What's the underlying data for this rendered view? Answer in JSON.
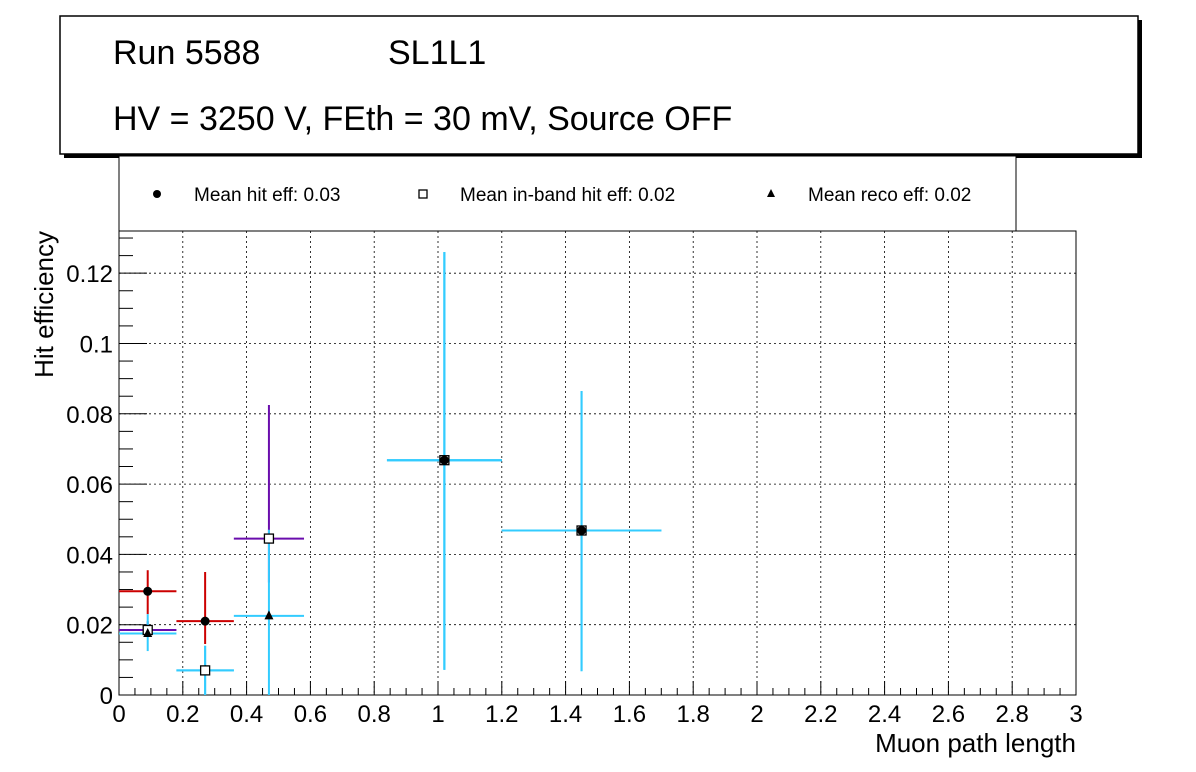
{
  "chart_data": {
    "type": "scatter",
    "title_line1_run": "Run 5588",
    "title_line1_layer": "SL1L1",
    "title_line2": "HV = 3250 V, FEth = 30 mV, Source OFF",
    "xlabel": "Muon path length",
    "ylabel": "Hit efficiency",
    "xlim": [
      0,
      3
    ],
    "ylim": [
      0,
      0.132
    ],
    "grid": true,
    "x_ticks": [
      {
        "v": 0,
        "label": "0"
      },
      {
        "v": 0.2,
        "label": "0.2"
      },
      {
        "v": 0.4,
        "label": "0.4"
      },
      {
        "v": 0.6,
        "label": "0.6"
      },
      {
        "v": 0.8,
        "label": "0.8"
      },
      {
        "v": 1,
        "label": "1"
      },
      {
        "v": 1.2,
        "label": "1.2"
      },
      {
        "v": 1.4,
        "label": "1.4"
      },
      {
        "v": 1.6,
        "label": "1.6"
      },
      {
        "v": 1.8,
        "label": "1.8"
      },
      {
        "v": 2,
        "label": "2"
      },
      {
        "v": 2.2,
        "label": "2.2"
      },
      {
        "v": 2.4,
        "label": "2.4"
      },
      {
        "v": 2.6,
        "label": "2.6"
      },
      {
        "v": 2.8,
        "label": "2.8"
      },
      {
        "v": 3,
        "label": "3"
      }
    ],
    "y_ticks": [
      {
        "v": 0,
        "label": "0"
      },
      {
        "v": 0.02,
        "label": "0.02"
      },
      {
        "v": 0.04,
        "label": "0.04"
      },
      {
        "v": 0.06,
        "label": "0.06"
      },
      {
        "v": 0.08,
        "label": "0.08"
      },
      {
        "v": 0.1,
        "label": "0.1"
      },
      {
        "v": 0.12,
        "label": "0.12"
      }
    ],
    "legend": [
      {
        "label": "Mean hit  eff: 0.03",
        "marker": "circle"
      },
      {
        "label": "Mean in-band hit eff: 0.02",
        "marker": "square-open"
      },
      {
        "label": "Mean reco eff: 0.02",
        "marker": "triangle"
      }
    ],
    "legend_placement": "top",
    "series": [
      {
        "name": "Mean hit  eff: 0.03",
        "marker": "circle",
        "color": "#cc0000",
        "points": [
          {
            "x": 0.09,
            "y": 0.0295,
            "xlo": 0.0,
            "xhi": 0.18,
            "ylo": 0.023,
            "yhi": 0.0355
          },
          {
            "x": 0.27,
            "y": 0.021,
            "xlo": 0.18,
            "xhi": 0.36,
            "ylo": 0.0145,
            "yhi": 0.035
          }
        ]
      },
      {
        "name": "Mean in-band hit eff: 0.02",
        "marker": "square-open",
        "color": "#6a0dad",
        "points": [
          {
            "x": 0.09,
            "y": 0.0185,
            "xlo": 0.0,
            "xhi": 0.18,
            "ylo": 0.0165,
            "yhi": 0.021
          },
          {
            "x": 0.47,
            "y": 0.0445,
            "xlo": 0.36,
            "xhi": 0.58,
            "ylo": 0.032,
            "yhi": 0.0825
          }
        ]
      },
      {
        "name": "Mean reco eff: 0.02",
        "marker": "triangle",
        "color": "#33ccff",
        "points": [
          {
            "x": 0.09,
            "y": 0.0175,
            "xlo": 0.0,
            "xhi": 0.18,
            "ylo": 0.0125,
            "yhi": 0.023
          },
          {
            "x": 0.27,
            "y": 0.007,
            "xlo": 0.18,
            "xhi": 0.36,
            "ylo": 0.0,
            "yhi": 0.014
          },
          {
            "x": 0.47,
            "y": 0.0225,
            "xlo": 0.36,
            "xhi": 0.58,
            "ylo": 0.0,
            "yhi": 0.047
          },
          {
            "x": 1.02,
            "y": 0.0668,
            "xlo": 0.84,
            "xhi": 1.2,
            "ylo": 0.0072,
            "yhi": 0.126
          },
          {
            "x": 1.45,
            "y": 0.0468,
            "xlo": 1.2,
            "xhi": 1.7,
            "ylo": 0.0068,
            "yhi": 0.0865
          }
        ]
      },
      {
        "name": "in-band overlay",
        "marker": "square-open",
        "color": "#33ccff",
        "legend": false,
        "points": [
          {
            "x": 0.27,
            "y": 0.007,
            "xlo": 0.18,
            "xhi": 0.36,
            "ylo": 0.0,
            "yhi": 0.014
          },
          {
            "x": 1.02,
            "y": 0.0668,
            "xlo": 0.84,
            "xhi": 1.2,
            "ylo": 0.0072,
            "yhi": 0.126
          },
          {
            "x": 1.45,
            "y": 0.0468,
            "xlo": 1.2,
            "xhi": 1.7,
            "ylo": 0.0068,
            "yhi": 0.0865
          }
        ]
      },
      {
        "name": "hit overlay",
        "marker": "circle",
        "color": "#33ccff",
        "legend": false,
        "points": [
          {
            "x": 1.02,
            "y": 0.0668,
            "xlo": 0.84,
            "xhi": 1.2,
            "ylo": 0.0072,
            "yhi": 0.126
          },
          {
            "x": 1.45,
            "y": 0.0468,
            "xlo": 1.2,
            "xhi": 1.7,
            "ylo": 0.0068,
            "yhi": 0.0865
          }
        ]
      }
    ]
  }
}
